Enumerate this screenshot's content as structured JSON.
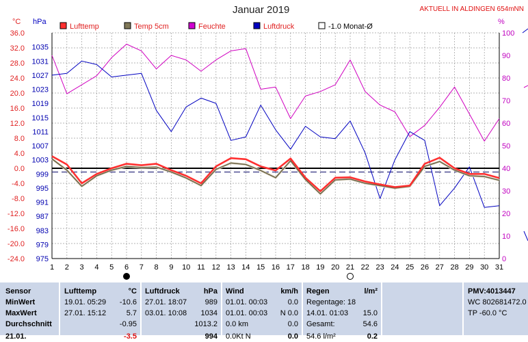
{
  "header": {
    "title": "Januar 2019",
    "station": "AKTUELL IN ALDINGEN 654mNN",
    "unit_left_temp": "°C",
    "unit_left_pressure": "hPa",
    "unit_right": "%"
  },
  "colors": {
    "luft": "#ff3030",
    "temp5": "#6b6446",
    "feuchte": "#d000c0",
    "luftdruck": "#0000c0",
    "ref": "#000000",
    "panel": "#ccd6e8"
  },
  "legend": [
    {
      "label": "Lufttemp",
      "color": "#ff3030",
      "text_color": "#e02020"
    },
    {
      "label": "Temp 5cm",
      "color": "#807858",
      "text_color": "#e02020"
    },
    {
      "label": "Feuchte",
      "color": "#d000d0",
      "text_color": "#e02020"
    },
    {
      "label": "Luftdruck",
      "color": "#0000c0",
      "text_color": "#e02020"
    },
    {
      "label": "-1.0 Monat-Ø",
      "color": "#ffffff",
      "text_color": "#000000"
    }
  ],
  "chart_data": {
    "type": "line",
    "title": "Januar 2019",
    "x": [
      1,
      2,
      3,
      4,
      5,
      6,
      7,
      8,
      9,
      10,
      11,
      12,
      13,
      14,
      15,
      16,
      17,
      18,
      19,
      20,
      21,
      22,
      23,
      24,
      25,
      26,
      27,
      28,
      29,
      30,
      31
    ],
    "x_ticks": [
      "1",
      "2",
      "3",
      "4",
      "5",
      "6",
      "7",
      "8",
      "9",
      "10",
      "11",
      "12",
      "13",
      "14",
      "15",
      "16",
      "17",
      "18",
      "19",
      "20",
      "21",
      "22",
      "23",
      "24",
      "25",
      "26",
      "27",
      "28",
      "29",
      "30",
      "31"
    ],
    "temp_axis": {
      "label": "°C",
      "range": [
        -24,
        36
      ],
      "ticks": [
        "36.0",
        "32.0",
        "28.0",
        "24.0",
        "20.0",
        "16.0",
        "12.0",
        "8.0",
        "4.0",
        "0.0",
        "-4.0",
        "-8.0",
        "-12.0",
        "-16.0",
        "-20.0",
        "-24.0"
      ]
    },
    "pressure_axis": {
      "label": "hPa",
      "range": [
        975,
        1039
      ],
      "ticks": [
        "1035",
        "1031",
        "1027",
        "1023",
        "1019",
        "1015",
        "1011",
        "1007",
        "1003",
        "999",
        "995",
        "991",
        "987",
        "983",
        "979",
        "975"
      ]
    },
    "humidity_axis": {
      "label": "%",
      "range": [
        0,
        100
      ],
      "ticks": [
        "100",
        "90",
        "80",
        "70",
        "60",
        "50",
        "40",
        "30",
        "20",
        "10",
        "0"
      ]
    },
    "reference_lines": [
      {
        "name": "-1.0 Monat-Ø",
        "value": -1.0
      }
    ],
    "series": [
      {
        "name": "Lufttemp",
        "axis": "temp",
        "values": [
          3.2,
          1.0,
          -4.0,
          -1.5,
          0.0,
          1.2,
          0.8,
          1.2,
          -0.5,
          -2.0,
          -4.0,
          0.5,
          2.7,
          2.4,
          0.5,
          -0.6,
          2.6,
          -2.5,
          -6.1,
          -2.5,
          -2.4,
          -3.5,
          -4.3,
          -5.0,
          -4.6,
          1.2,
          2.8,
          0.0,
          -1.5,
          -1.5,
          -2.6
        ]
      },
      {
        "name": "Temp 5cm",
        "axis": "temp",
        "values": [
          2.5,
          -0.5,
          -4.8,
          -2.0,
          -0.5,
          0.5,
          0.2,
          0.3,
          -1.0,
          -2.6,
          -4.6,
          -0.3,
          1.4,
          1.0,
          -0.6,
          -2.5,
          2.0,
          -3.0,
          -6.8,
          -3.1,
          -2.9,
          -4.0,
          -4.6,
          -5.3,
          -4.8,
          0.5,
          1.8,
          -0.5,
          -2.0,
          -2.2,
          -3.2
        ]
      },
      {
        "name": "Feuchte",
        "axis": "humidity",
        "values": [
          90,
          73,
          77,
          81,
          89,
          95,
          92,
          84,
          90,
          88,
          83,
          88,
          92,
          93,
          75,
          76,
          62,
          72,
          74,
          77,
          88,
          74,
          68,
          65,
          54,
          59,
          67,
          76,
          64,
          52,
          62
        ]
      },
      {
        "name": "Luftdruck",
        "axis": "pressure",
        "values": [
          1027.0,
          1027.5,
          1031.0,
          1030.0,
          1026.5,
          1027.0,
          1027.5,
          1017.0,
          1011.0,
          1018.0,
          1020.5,
          1019.0,
          1008.5,
          1009.5,
          1018.5,
          1011.5,
          1006.0,
          1012.5,
          1009.5,
          1009.0,
          1014.0,
          1005.0,
          992.0,
          1003.0,
          1011.0,
          1008.5,
          990.0,
          995.0,
          1001.0,
          989.5,
          990.0
        ]
      }
    ],
    "markers": [
      {
        "day": "6",
        "phase": "new-moon"
      },
      {
        "day": "21",
        "phase": "full-moon"
      }
    ],
    "grid": true,
    "legend_position": "top"
  },
  "stats": {
    "sensor": {
      "header": "Sensor",
      "rows": [
        "MinWert",
        "MaxWert",
        "Durchschnitt"
      ],
      "last": "21.01."
    },
    "lufttemp": {
      "header": "Lufttemp",
      "unit": "°C",
      "min_ts": "19.01.  05:29",
      "min_val": "-10.6",
      "max_ts": "27.01.  15:12",
      "max_val": "5.7",
      "avg": "-0.95",
      "last_val": "-3.5"
    },
    "luftdruck": {
      "header": "Luftdruck",
      "unit": "hPa",
      "min_ts": "27.01.  18:07",
      "min_val": "989",
      "max_ts": "03.01.  10:08",
      "max_val": "1034",
      "avg": "1013.2",
      "last_val": "994"
    },
    "wind": {
      "header": "Wind",
      "unit": "km/h",
      "r1a": "01.01.  00:03",
      "r1b": "0.0",
      "r2a": "01.01.  00:03",
      "r2b": "N  0.0",
      "r3a": "0.0 km",
      "r3b": "0.0",
      "r4a": "0.0Kt N",
      "r4b": "0.0"
    },
    "regen": {
      "header": "Regen",
      "unit": "l/m²",
      "r1": "Regentage: 18",
      "r2a": "14.01.  01:03",
      "r2b": "15.0",
      "r3a": "Gesamt:",
      "r3b": "54.6",
      "r4a": "54.6 l/m²",
      "r4b": "0.2"
    },
    "pmv": {
      "header": "PMV:4013447",
      "r1": "WC 802681472.0",
      "r2": "TP -60.0 °C"
    }
  }
}
